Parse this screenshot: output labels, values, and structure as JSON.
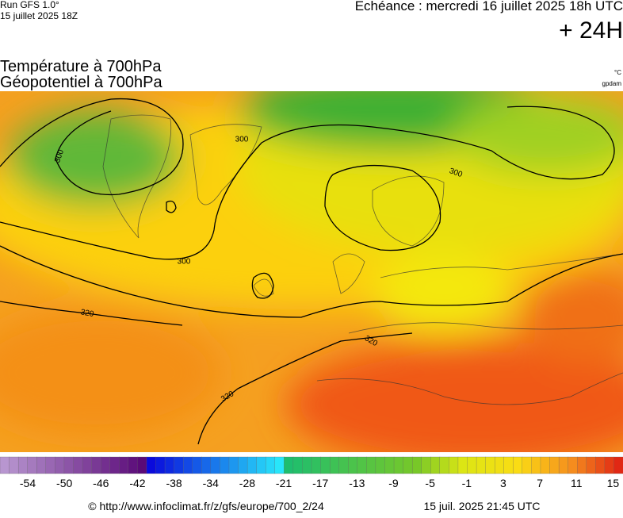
{
  "header": {
    "run": "Run GFS 1.0°",
    "date": "15 juillet 2025 18Z",
    "echeance": "Echéance : mercredi 16 juillet 2025 18h UTC",
    "lead": "+ 24H"
  },
  "titles": [
    "Température à 700hPa",
    "Géopotentiel à 700hPa"
  ],
  "units": [
    "°C",
    "gpdam"
  ],
  "contour_labels": [
    300,
    300,
    300,
    300,
    320,
    320,
    320
  ],
  "colorbar": {
    "labels": [
      -54,
      -50,
      -46,
      -42,
      -38,
      -34,
      -28,
      -21,
      -17,
      -13,
      -9,
      -5,
      -1,
      3,
      7,
      11,
      15
    ]
  },
  "footer": {
    "url": "© http://www.infoclimat.fr/z/gfs/europe/700_2/24",
    "timestamp": "15 juil. 2025 21:45 UTC"
  }
}
